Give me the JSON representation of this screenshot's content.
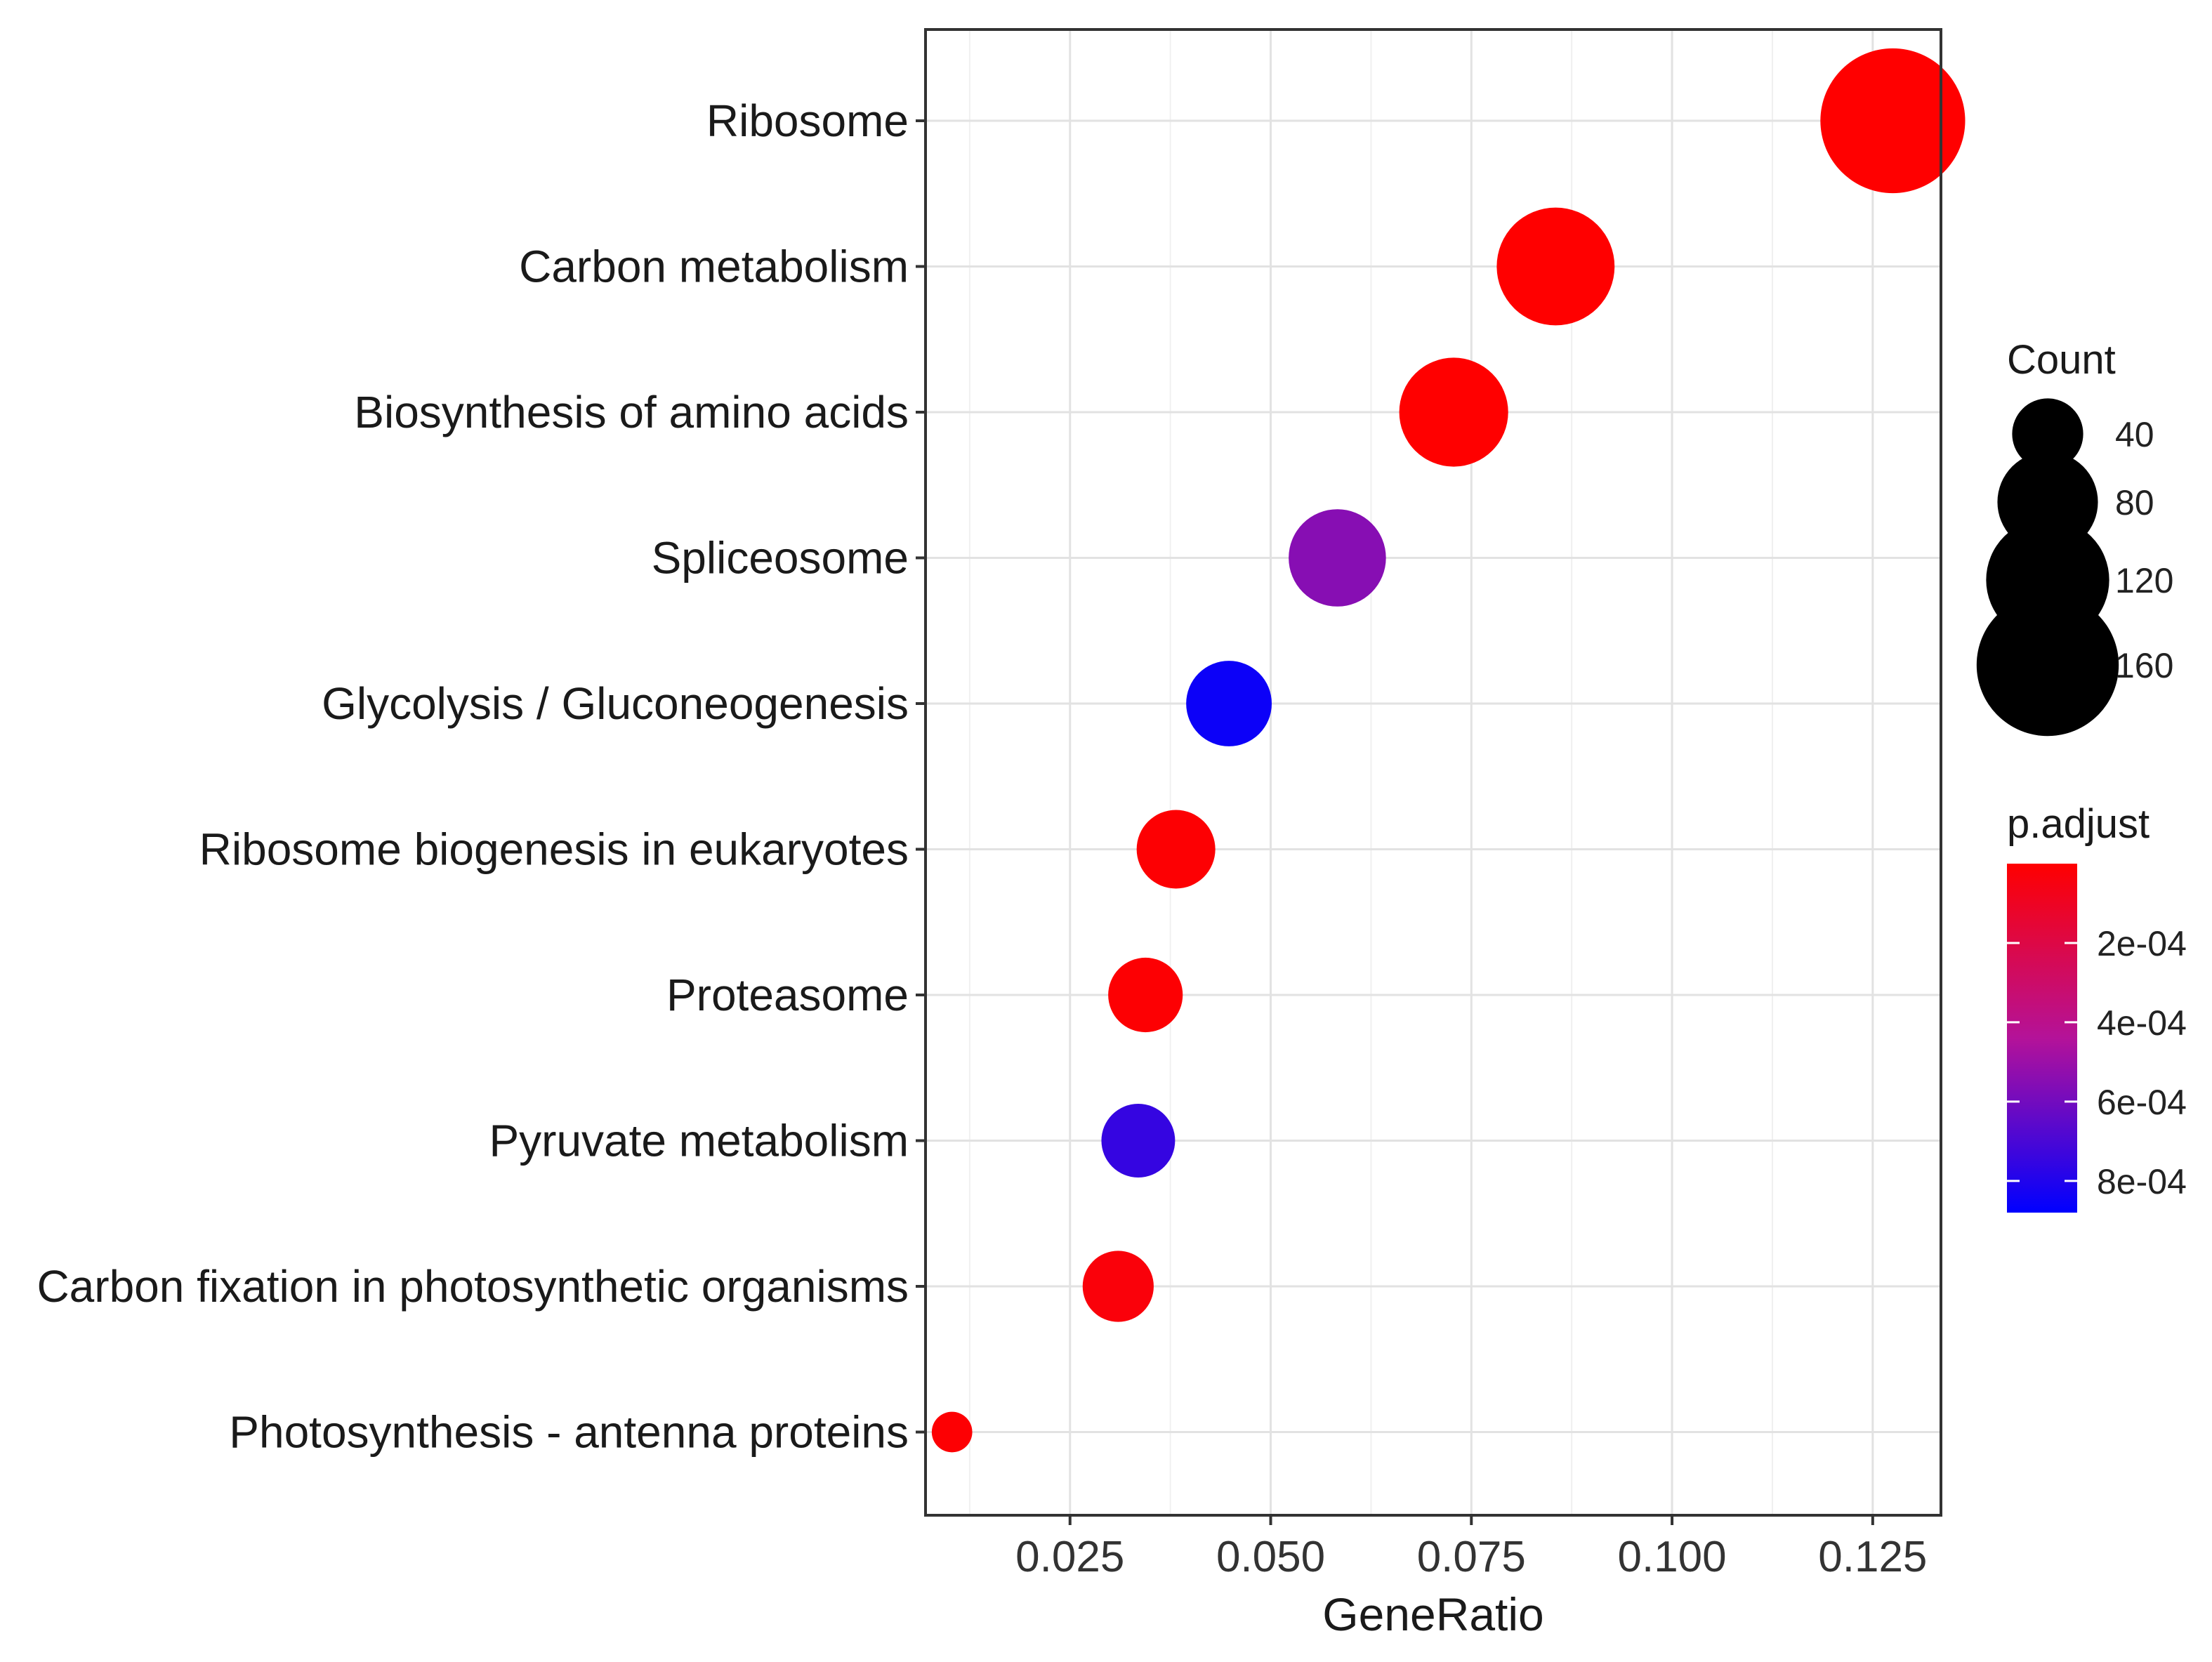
{
  "chart_data": {
    "type": "scatter",
    "title": "",
    "xlabel": "GeneRatio",
    "ylabel": "",
    "xlim": [
      0.007,
      0.1335
    ],
    "xticks": [
      0.025,
      0.05,
      0.075,
      0.1,
      0.125
    ],
    "xtick_labels": [
      "0.025",
      "0.050",
      "0.075",
      "0.100",
      "0.125"
    ],
    "grid": true,
    "categories": [
      "Ribosome",
      "Carbon metabolism",
      "Biosynthesis of amino acids",
      "Spliceosome",
      "Glycolysis / Gluconeogenesis",
      "Ribosome biogenesis in eukaryotes",
      "Proteasome",
      "Pyruvate metabolism",
      "Carbon fixation in photosynthetic organisms",
      "Photosynthesis - antenna proteins"
    ],
    "points": [
      {
        "term": "Ribosome",
        "gene_ratio": 0.1275,
        "count": 166,
        "p_adjust": 0.0
      },
      {
        "term": "Carbon metabolism",
        "gene_ratio": 0.0855,
        "count": 110,
        "p_adjust": 0.0
      },
      {
        "term": "Biosynthesis of amino acids",
        "gene_ratio": 0.0728,
        "count": 94,
        "p_adjust": 0.0
      },
      {
        "term": "Spliceosome",
        "gene_ratio": 0.0583,
        "count": 75,
        "p_adjust": 0.00055
      },
      {
        "term": "Glycolysis / Gluconeogenesis",
        "gene_ratio": 0.0448,
        "count": 58,
        "p_adjust": 0.00085
      },
      {
        "term": "Ribosome biogenesis in eukaryotes",
        "gene_ratio": 0.0382,
        "count": 49,
        "p_adjust": 1e-05
      },
      {
        "term": "Proteasome",
        "gene_ratio": 0.0344,
        "count": 44,
        "p_adjust": 1e-05
      },
      {
        "term": "Pyruvate metabolism",
        "gene_ratio": 0.0335,
        "count": 43,
        "p_adjust": 0.00075
      },
      {
        "term": "Carbon fixation in photosynthetic organisms",
        "gene_ratio": 0.031,
        "count": 40,
        "p_adjust": 3e-05
      },
      {
        "term": "Photosynthesis - antenna proteins",
        "gene_ratio": 0.0103,
        "count": 13,
        "p_adjust": 1e-05
      }
    ],
    "size_legend": {
      "title": "Count",
      "values": [
        40,
        80,
        120,
        160
      ],
      "labels": [
        "40",
        "80",
        "120",
        "160"
      ]
    },
    "color_legend": {
      "title": "p.adjust",
      "range": [
        0.0,
        0.00088
      ],
      "ticks": [
        0.0002,
        0.0004,
        0.0006,
        0.0008
      ],
      "tick_labels": [
        "2e-04",
        "4e-04",
        "6e-04",
        "8e-04"
      ],
      "low_color": "#ff0000",
      "high_color": "#0000ff"
    },
    "legend_placement": "right"
  }
}
